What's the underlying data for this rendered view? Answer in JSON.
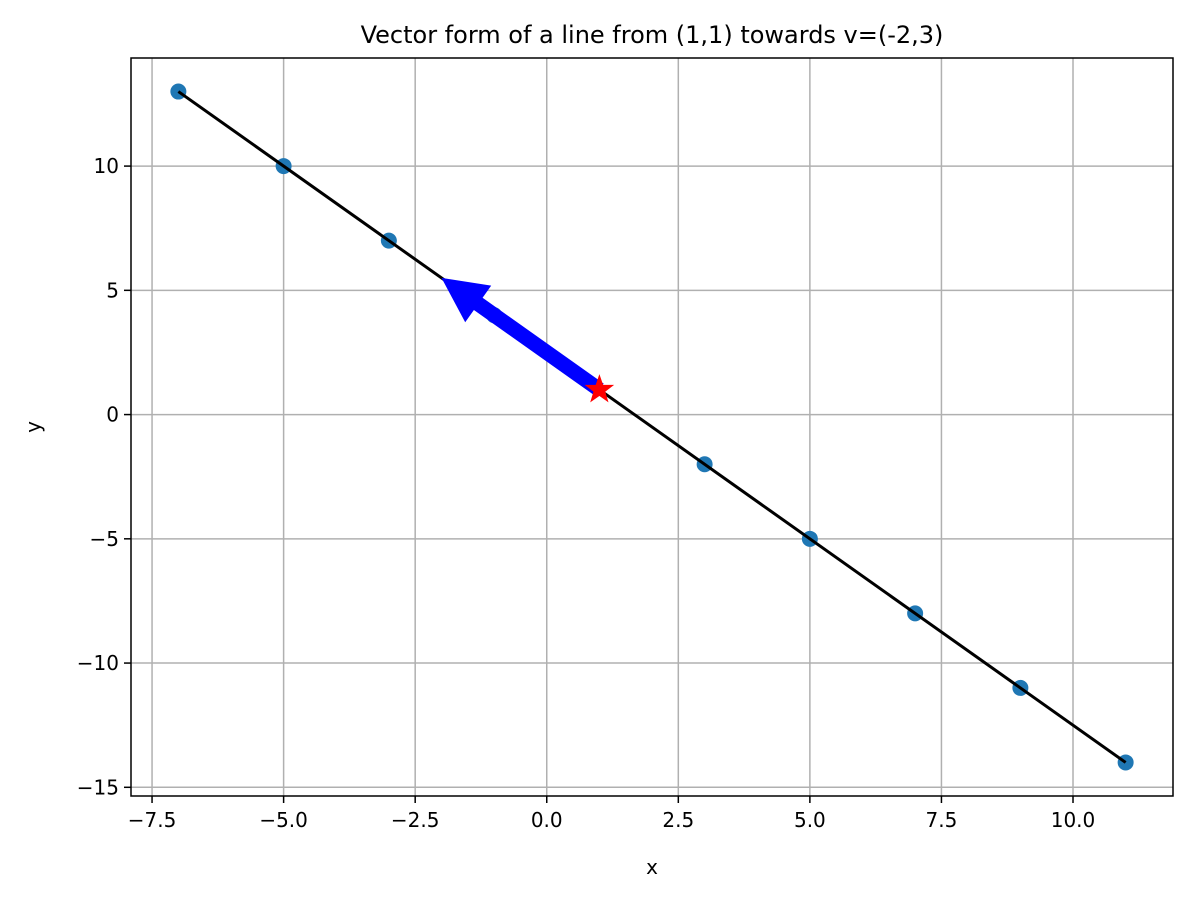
{
  "chart_data": {
    "type": "scatter",
    "title": "Vector form of a line from (1,1) towards v=(-2,3)",
    "xlabel": "x",
    "ylabel": "y",
    "xlim": [
      -7.9,
      11.9
    ],
    "ylim": [
      -15.35,
      14.35
    ],
    "xticks": [
      -7.5,
      -5.0,
      -2.5,
      0.0,
      2.5,
      5.0,
      7.5,
      10.0
    ],
    "xtick_labels": [
      "−7.5",
      "−5.0",
      "−2.5",
      "0.0",
      "2.5",
      "5.0",
      "7.5",
      "10.0"
    ],
    "yticks": [
      -15,
      -10,
      -5,
      0,
      5,
      10
    ],
    "ytick_labels": [
      "−15",
      "−10",
      "−5",
      "0",
      "5",
      "10"
    ],
    "grid": true,
    "line": {
      "x": [
        -7,
        11
      ],
      "y": [
        13,
        -14
      ],
      "color": "#000000"
    },
    "points": {
      "x": [
        -7,
        -5,
        -3,
        -1,
        3,
        5,
        7,
        9,
        11
      ],
      "y": [
        13,
        10,
        7,
        4,
        -2,
        -5,
        -8,
        -11,
        -14
      ],
      "color": "#1f77b4"
    },
    "start_point": {
      "x": 1,
      "y": 1,
      "marker": "star",
      "color": "#ff0000"
    },
    "direction_vector": {
      "from": [
        1,
        1
      ],
      "to": [
        -2,
        5.5
      ],
      "color": "#0000ff"
    }
  }
}
